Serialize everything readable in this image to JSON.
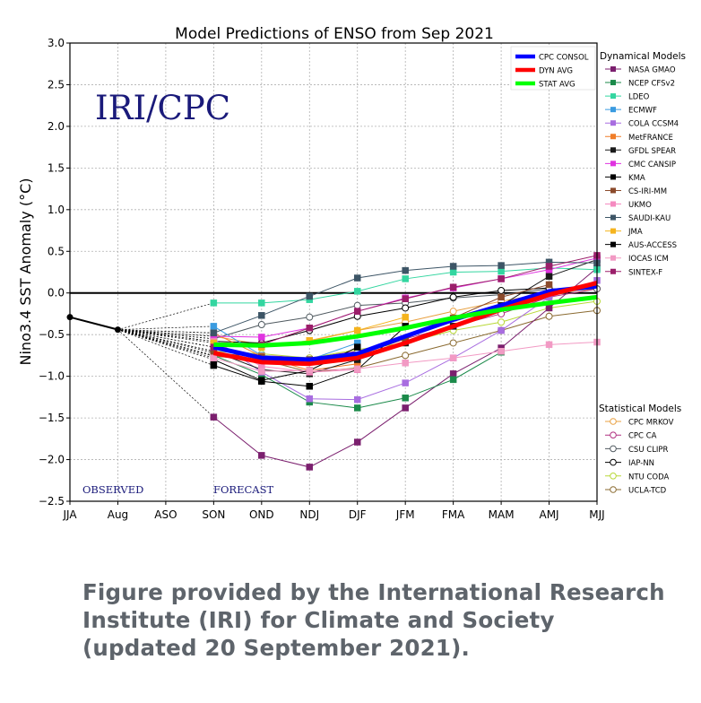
{
  "credit": {
    "line1": "Figure provided by the International Research",
    "line2": "Institute (IRI) for Climate and Society",
    "line3": "(updated 20 September 2021)."
  },
  "chart_data": {
    "type": "line",
    "title": "Model Predictions of ENSO from Sep 2021",
    "ylabel": "Nino3.4 SST Anomaly (°C)",
    "xlabel": "",
    "watermark": "IRI/CPC",
    "observed_label": "OBSERVED",
    "forecast_label": "FORECAST",
    "categories": [
      "JJA",
      "Aug",
      "ASO",
      "SON",
      "OND",
      "NDJ",
      "DJF",
      "JFM",
      "FMA",
      "MAM",
      "AMJ",
      "MJJ"
    ],
    "ylim": [
      -2.5,
      3.0
    ],
    "yticks": [
      -2.5,
      -2.0,
      -1.5,
      -1.0,
      -0.5,
      0.0,
      0.5,
      1.0,
      1.5,
      2.0,
      2.5,
      3.0
    ],
    "ytick_labels": [
      "−2.5",
      "−2.0",
      "−1.5",
      "−1.0",
      "−0.5",
      "0.0",
      "0.5",
      "1.0",
      "1.5",
      "2.0",
      "2.5",
      "3.0"
    ],
    "grid": true,
    "zero_line": true,
    "observed": {
      "x": [
        0,
        1
      ],
      "values": [
        -0.29,
        -0.44
      ],
      "color": "#000000"
    },
    "averages": [
      {
        "name": "CPC CONSOL",
        "color": "#0000ff",
        "x": [
          3,
          4,
          5,
          6,
          7,
          8,
          9,
          10,
          11
        ],
        "values": [
          -0.65,
          -0.78,
          -0.8,
          -0.73,
          -0.52,
          -0.32,
          -0.15,
          0.02,
          0.08
        ]
      },
      {
        "name": "DYN AVG",
        "color": "#ff0000",
        "x": [
          3,
          4,
          5,
          6,
          7,
          8,
          9,
          10,
          11
        ],
        "values": [
          -0.72,
          -0.83,
          -0.85,
          -0.78,
          -0.6,
          -0.4,
          -0.2,
          -0.02,
          0.12
        ]
      },
      {
        "name": "STAT AVG",
        "color": "#00ff00",
        "x": [
          3,
          4,
          5,
          6,
          7,
          8,
          9,
          10,
          11
        ],
        "values": [
          -0.62,
          -0.63,
          -0.6,
          -0.52,
          -0.42,
          -0.3,
          -0.2,
          -0.12,
          -0.05
        ]
      }
    ],
    "dynamical_models_title": "Dynamical Models",
    "statistical_models_title": "Statistical Models",
    "dynamical_models": [
      {
        "name": "NASA GMAO",
        "color": "#7b1f6e",
        "values": [
          -1.49,
          -1.95,
          -2.09,
          -1.79,
          -1.38,
          -0.97,
          -0.66,
          -0.18,
          0.3
        ]
      },
      {
        "name": "NCEP CFSv2",
        "color": "#1b8a4a",
        "values": [
          -0.75,
          -0.98,
          -1.31,
          -1.38,
          -1.26,
          -1.04,
          -0.71,
          null,
          null
        ]
      },
      {
        "name": "LDEO",
        "color": "#33d6a0",
        "values": [
          -0.12,
          -0.12,
          -0.08,
          0.02,
          0.17,
          0.25,
          0.26,
          0.3,
          0.28
        ]
      },
      {
        "name": "ECMWF",
        "color": "#3a9be0",
        "values": [
          -0.4,
          -0.75,
          -0.8,
          -0.6,
          null,
          null,
          null,
          null,
          null
        ]
      },
      {
        "name": "COLA CCSM4",
        "color": "#a86de0",
        "values": [
          -0.55,
          -0.95,
          -1.27,
          -1.28,
          -1.08,
          -0.78,
          -0.45,
          -0.05,
          0.15
        ]
      },
      {
        "name": "MetFRANCE",
        "color": "#f07d28",
        "values": [
          -0.48,
          -0.76,
          -0.93,
          -0.85,
          null,
          null,
          null,
          null,
          null
        ]
      },
      {
        "name": "GFDL SPEAR",
        "color": "#1a1a1a",
        "values": [
          -0.7,
          -0.92,
          -0.97,
          -0.8,
          -0.6,
          -0.4,
          -0.15,
          0.2,
          0.4
        ]
      },
      {
        "name": "CMC CANSIP",
        "color": "#e033e0",
        "values": [
          -0.52,
          -0.53,
          -0.42,
          -0.22,
          -0.06,
          0.06,
          0.17,
          0.28,
          0.42
        ]
      },
      {
        "name": "KMA",
        "color": "#000000",
        "values": [
          -0.87,
          -1.06,
          -1.12,
          -0.92,
          -0.4,
          null,
          null,
          null,
          null
        ]
      },
      {
        "name": "CS-IRI-MM",
        "color": "#8b4a2b",
        "values": [
          -0.72,
          -0.77,
          -0.8,
          -0.75,
          -0.55,
          -0.3,
          -0.05,
          0.1,
          null
        ]
      },
      {
        "name": "UKMO",
        "color": "#f58ac0",
        "values": [
          -0.58,
          -0.88,
          -0.95,
          -0.92,
          null,
          null,
          null,
          null,
          null
        ]
      },
      {
        "name": "SAUDI-KAU",
        "color": "#3d5566",
        "values": [
          -0.48,
          -0.27,
          -0.04,
          0.18,
          0.27,
          0.32,
          0.33,
          0.37,
          0.36
        ]
      },
      {
        "name": "JMA",
        "color": "#f5b41e",
        "values": [
          -0.6,
          -0.65,
          -0.57,
          -0.45,
          -0.29,
          null,
          null,
          null,
          null
        ]
      },
      {
        "name": "AUS-ACCESS",
        "color": "#000000",
        "values": [
          -0.8,
          -1.05,
          -0.93,
          -0.65,
          null,
          null,
          null,
          null,
          null
        ]
      },
      {
        "name": "IOCAS ICM",
        "color": "#f29ac4",
        "values": [
          -0.78,
          -0.94,
          -0.93,
          -0.91,
          -0.84,
          -0.78,
          -0.7,
          -0.62,
          -0.59
        ]
      },
      {
        "name": "SINTEX-F",
        "color": "#9b1f6a",
        "values": [
          -0.65,
          -0.62,
          -0.42,
          -0.22,
          -0.07,
          0.07,
          0.17,
          0.32,
          0.45
        ]
      }
    ],
    "statistical_models": [
      {
        "name": "CPC MRKOV",
        "color": "#e8a040",
        "values": [
          -0.52,
          -0.62,
          -0.58,
          -0.45,
          -0.35,
          -0.22,
          -0.1,
          0.0,
          0.05
        ]
      },
      {
        "name": "CPC CA",
        "color": "#b03080",
        "values": [
          -0.65,
          -0.75,
          -0.78,
          -0.7,
          -0.55,
          -0.4,
          -0.25,
          -0.05,
          0.05
        ]
      },
      {
        "name": "CSU CLIPR",
        "color": "#505a60",
        "values": [
          -0.55,
          -0.38,
          -0.29,
          -0.15,
          -0.12,
          -0.06,
          -0.02,
          0.05,
          0.05
        ]
      },
      {
        "name": "IAP-NN",
        "color": "#000000",
        "values": [
          -0.58,
          -0.6,
          -0.45,
          -0.28,
          -0.18,
          -0.05,
          0.03,
          0.06,
          null
        ]
      },
      {
        "name": "NTU CODA",
        "color": "#b8d838",
        "values": [
          -0.7,
          -0.73,
          -0.78,
          -0.68,
          -0.6,
          -0.45,
          -0.35,
          -0.18,
          -0.1
        ]
      },
      {
        "name": "UCLA-TCD",
        "color": "#8a6a30",
        "values": [
          -0.76,
          -0.8,
          -0.95,
          -0.9,
          -0.75,
          -0.6,
          -0.45,
          -0.28,
          -0.21
        ]
      }
    ]
  }
}
